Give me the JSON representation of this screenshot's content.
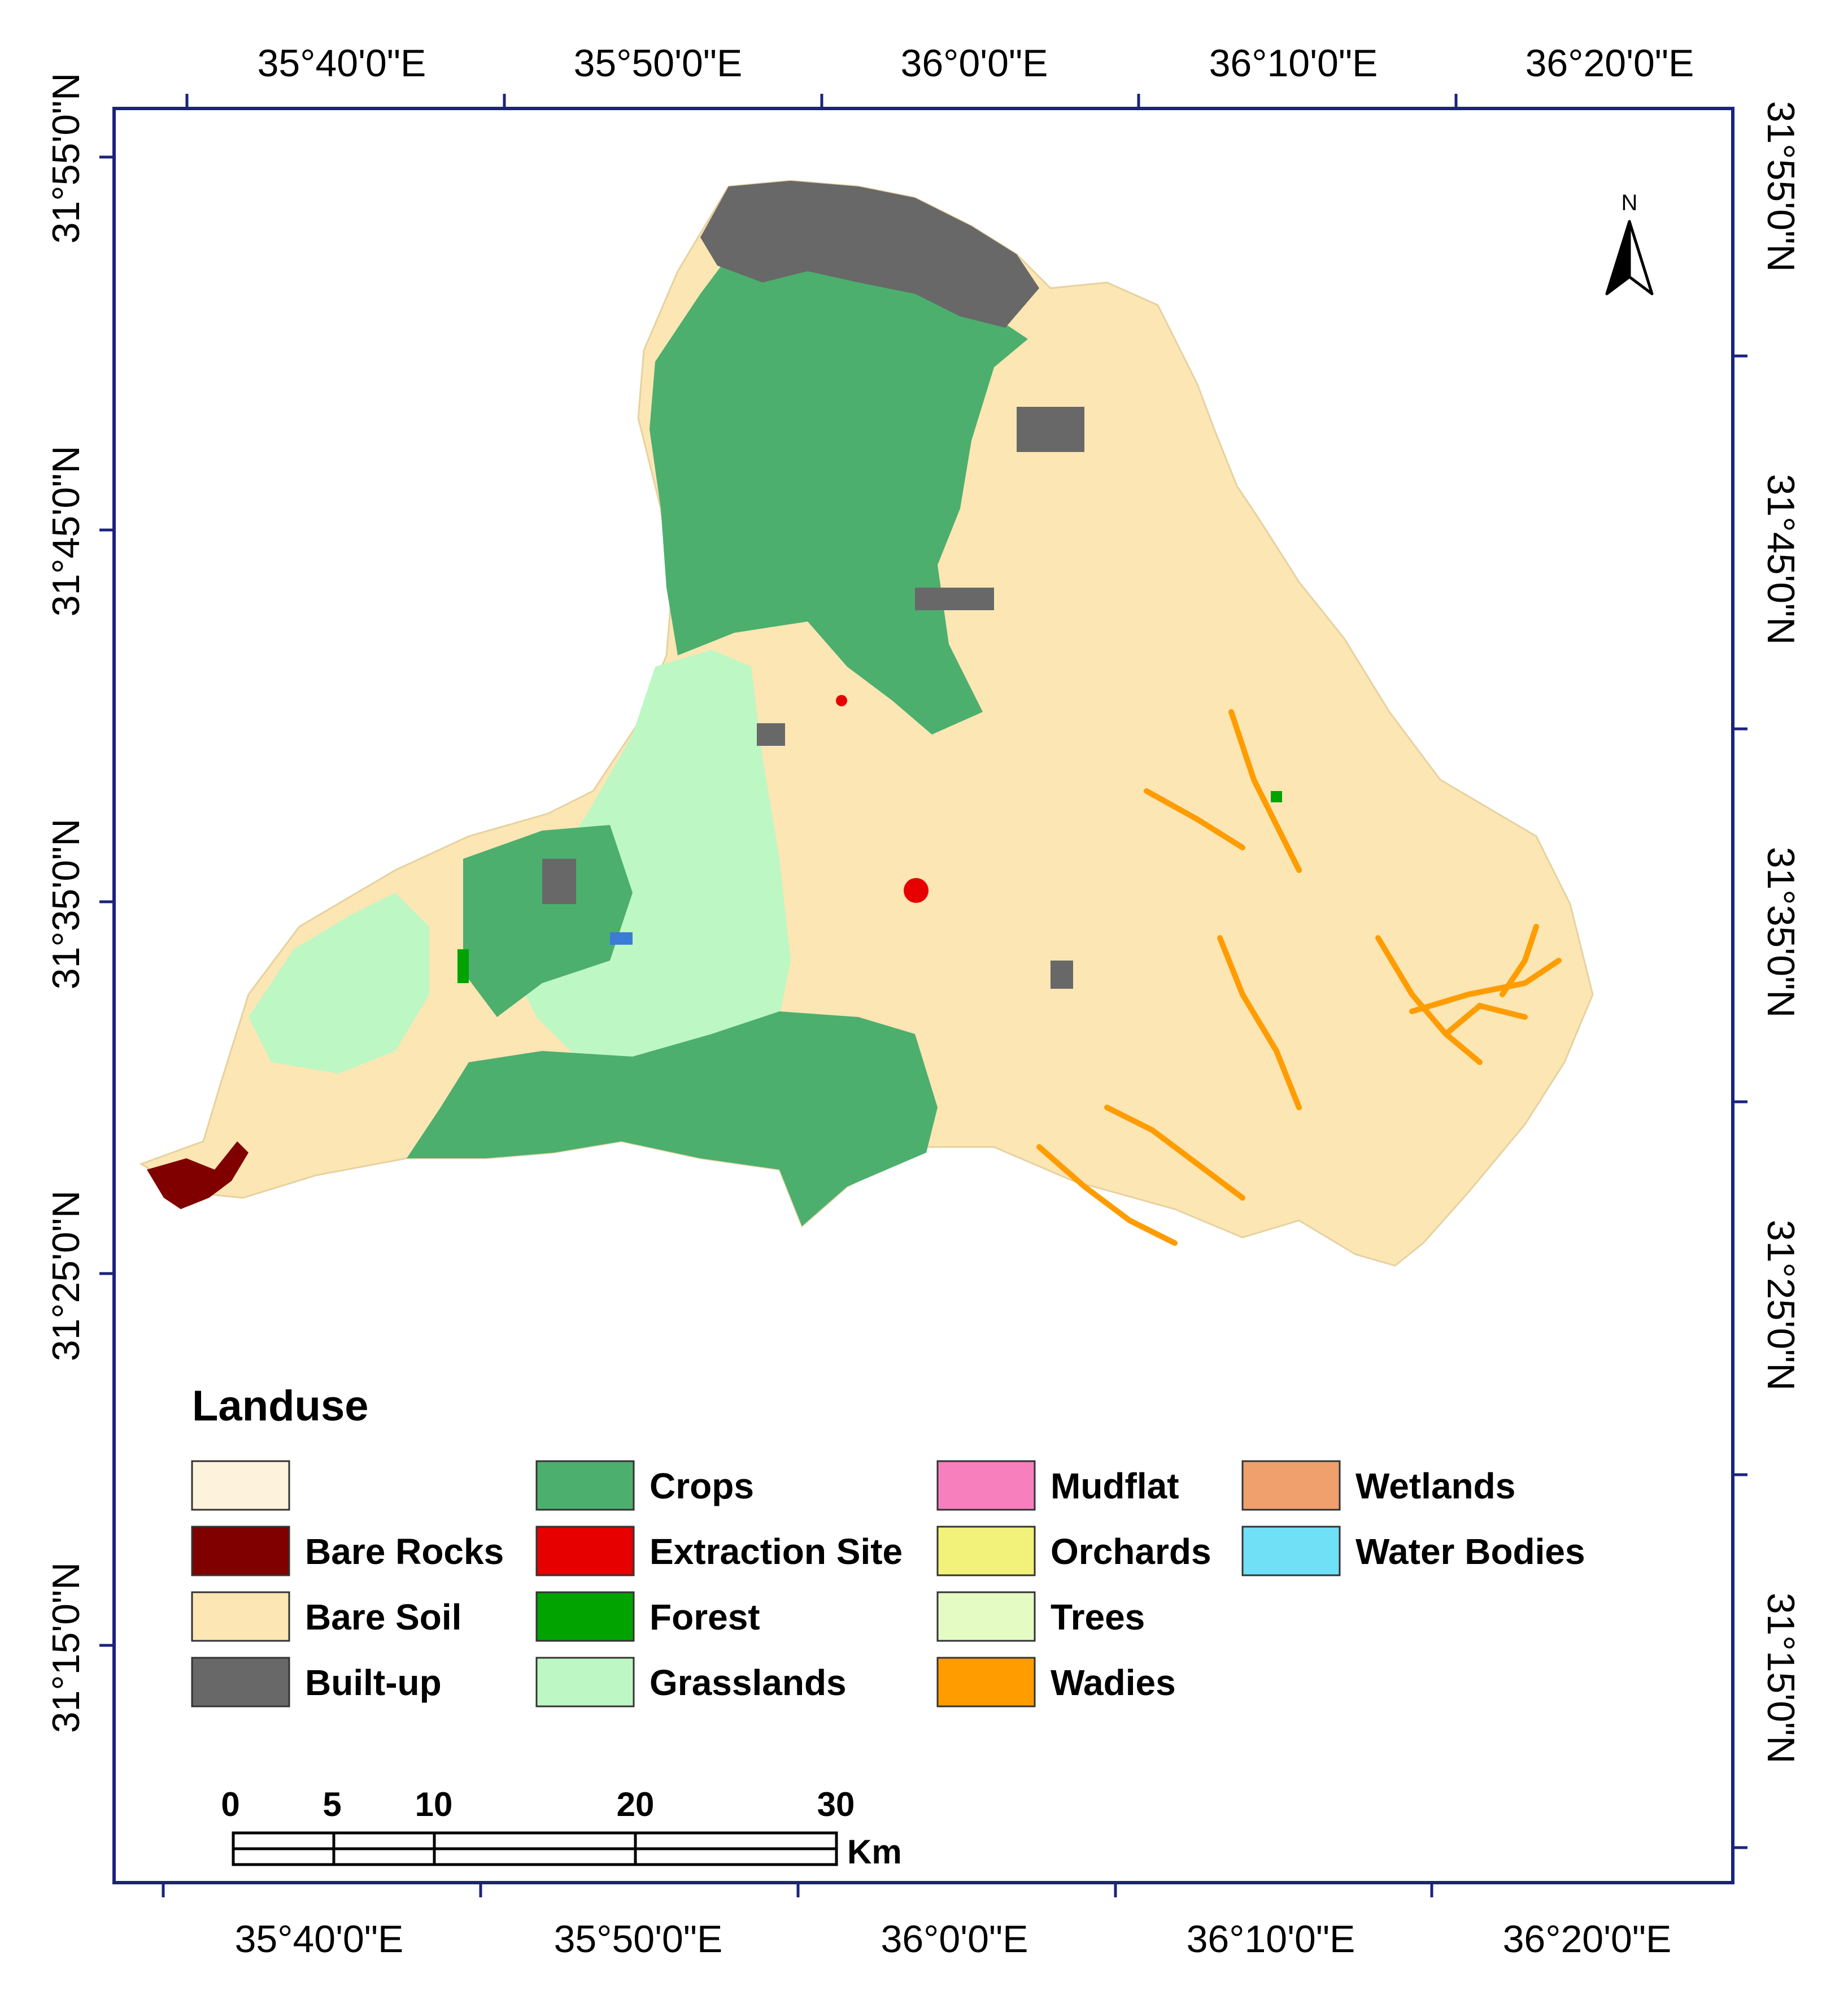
{
  "map": {
    "top_lon_labels": [
      "35°40'0\"E",
      "35°50'0\"E",
      "36°0'0\"E",
      "36°10'0\"E",
      "36°20'0\"E"
    ],
    "bottom_lon_labels": [
      "35°40'0\"E",
      "35°50'0\"E",
      "36°0'0\"E",
      "36°10'0\"E",
      "36°20'0\"E"
    ],
    "left_lat_labels": [
      "31°55'0\"N",
      "31°45'0\"N",
      "31°35'0\"N",
      "31°25'0\"N",
      "31°15'0\"N"
    ],
    "right_lat_labels": [
      "31°55'0\"N",
      "31°45'0\"N",
      "31°35'0\"N",
      "31°25'0\"N",
      "31°15'0\"N"
    ],
    "north_arrow_label": "N"
  },
  "legend": {
    "title": "Landuse",
    "items": [
      {
        "label": "",
        "color": "#fdf3dc"
      },
      {
        "label": "Bare Rocks",
        "color": "#800000"
      },
      {
        "label": "Bare Soil",
        "color": "#fce6b4"
      },
      {
        "label": "Built-up",
        "color": "#686868"
      },
      {
        "label": "Crops",
        "color": "#4caf6e"
      },
      {
        "label": "Extraction Site",
        "color": "#e60000"
      },
      {
        "label": "Forest",
        "color": "#00a300"
      },
      {
        "label": "Grasslands",
        "color": "#bdf7c4"
      },
      {
        "label": "Mudflat",
        "color": "#f87fbe"
      },
      {
        "label": "Orchards",
        "color": "#f2f27a"
      },
      {
        "label": "Trees",
        "color": "#e4fbc4"
      },
      {
        "label": "Wadies",
        "color": "#ff9c00"
      },
      {
        "label": "Wetlands",
        "color": "#f0a06c"
      },
      {
        "label": "Water Bodies",
        "color": "#6fe0f5"
      }
    ]
  },
  "scale_bar": {
    "ticks": [
      "0",
      "5",
      "10",
      "20",
      "30"
    ],
    "unit": "Km"
  }
}
